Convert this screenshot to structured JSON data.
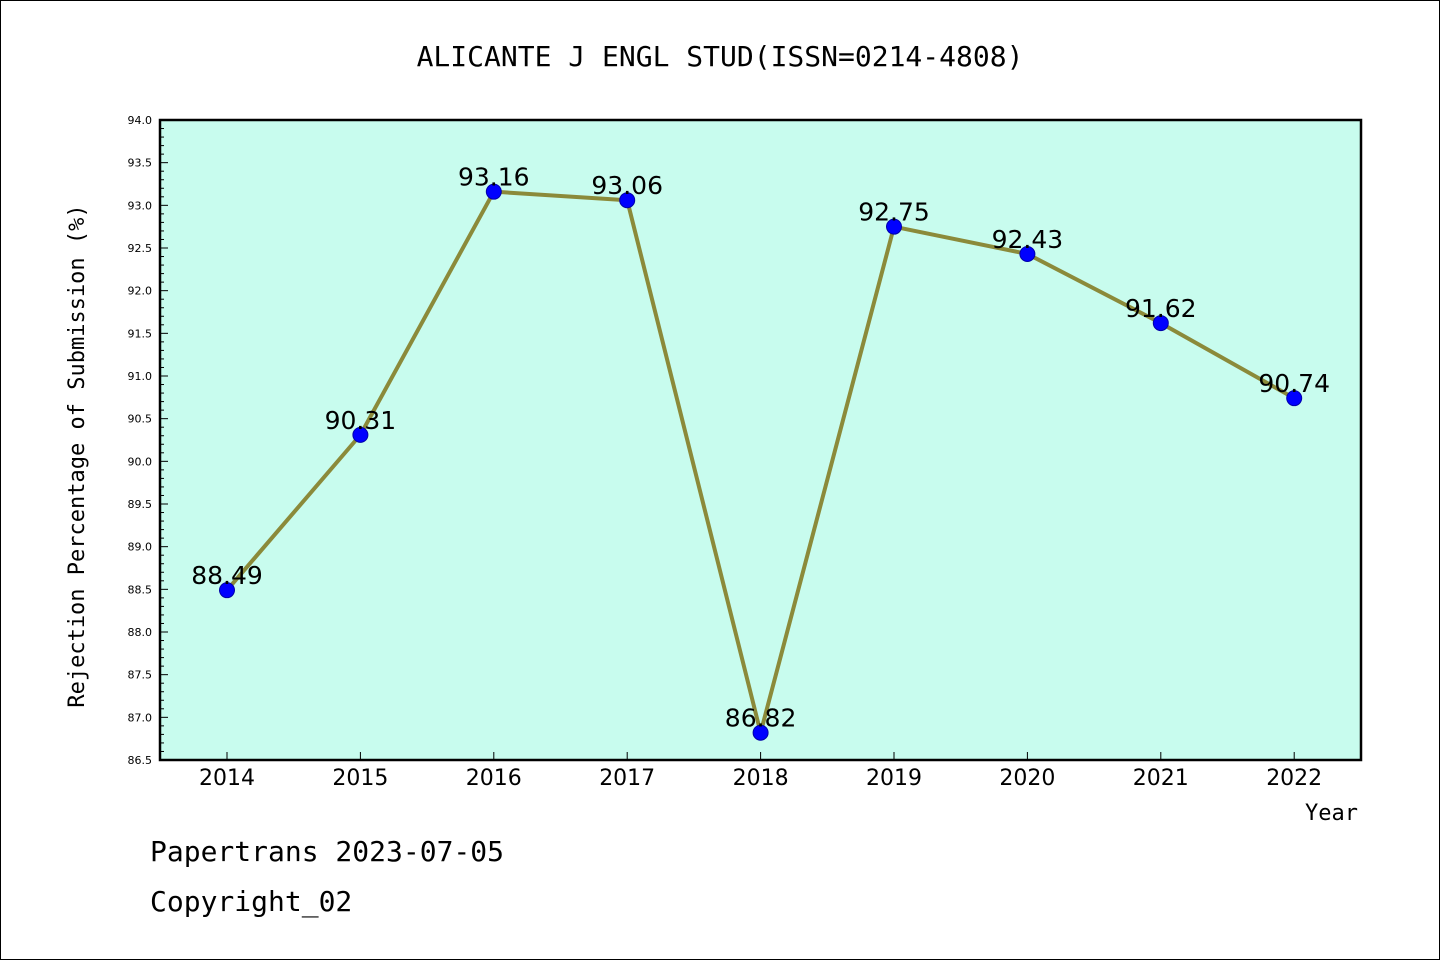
{
  "chart_data": {
    "type": "line",
    "title": "ALICANTE J ENGL STUD(ISSN=0214-4808)",
    "xlabel": "Year",
    "ylabel": "Rejection Percentage of Submission (%)",
    "x": [
      "2014",
      "2015",
      "2016",
      "2017",
      "2018",
      "2019",
      "2020",
      "2021",
      "2022"
    ],
    "series": [
      {
        "values": [
          88.49,
          90.31,
          93.16,
          93.06,
          86.82,
          92.75,
          92.43,
          91.62,
          90.74
        ],
        "labels": [
          "88.49",
          "90.31",
          "93.16",
          "93.06",
          "86.82",
          "92.75",
          "92.43",
          "91.62",
          "90.74"
        ]
      }
    ],
    "ylim": [
      86.5,
      94.0
    ],
    "yticks": [
      "86.5",
      "87.0",
      "87.5",
      "88.0",
      "88.5",
      "89.0",
      "89.5",
      "90.0",
      "90.5",
      "91.0",
      "91.5",
      "92.0",
      "92.5",
      "93.0",
      "93.5",
      "94.0"
    ],
    "grid": false,
    "colors": {
      "plot_background": "#c8fcee",
      "line": "#8b8a3a",
      "marker": "#0000ff"
    }
  },
  "footer": {
    "line1": "Papertrans 2023-07-05",
    "line2": "Copyright_02"
  }
}
